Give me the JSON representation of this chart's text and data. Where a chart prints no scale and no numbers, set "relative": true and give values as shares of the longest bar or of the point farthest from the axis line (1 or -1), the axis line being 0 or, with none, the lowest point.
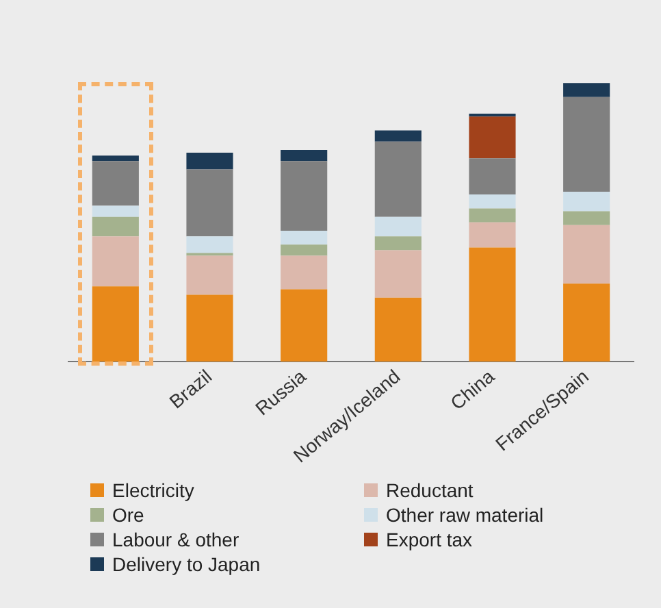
{
  "chart_data": {
    "type": "bar",
    "stacked": true,
    "relative": true,
    "legend": "bottom",
    "grid": false,
    "categories": [
      null,
      "Brazil",
      "Russia",
      "Norway/Iceland",
      "China",
      "France/Spain"
    ],
    "series": [
      {
        "name": "Electricity",
        "color": "#e8891a",
        "values": [
          0.27,
          0.24,
          0.26,
          0.23,
          0.41,
          0.28
        ]
      },
      {
        "name": "Reductant",
        "color": "#dcb8ac",
        "values": [
          0.18,
          0.14,
          0.12,
          0.17,
          0.09,
          0.21
        ]
      },
      {
        "name": "Ore",
        "color": "#a4b28e",
        "values": [
          0.07,
          0.01,
          0.04,
          0.05,
          0.05,
          0.05
        ]
      },
      {
        "name": "Other raw material",
        "color": "#cfe0ea",
        "values": [
          0.04,
          0.06,
          0.05,
          0.07,
          0.05,
          0.07
        ]
      },
      {
        "name": "Labour & other",
        "color": "#808080",
        "values": [
          0.16,
          0.24,
          0.25,
          0.27,
          0.13,
          0.34
        ]
      },
      {
        "name": "Export tax",
        "color": "#a2421b",
        "values": [
          0,
          0,
          0,
          0,
          0.15,
          0
        ]
      },
      {
        "name": "Delivery to Japan",
        "color": "#1c3a56",
        "values": [
          0.02,
          0.06,
          0.04,
          0.04,
          0.01,
          0.05
        ]
      }
    ]
  }
}
